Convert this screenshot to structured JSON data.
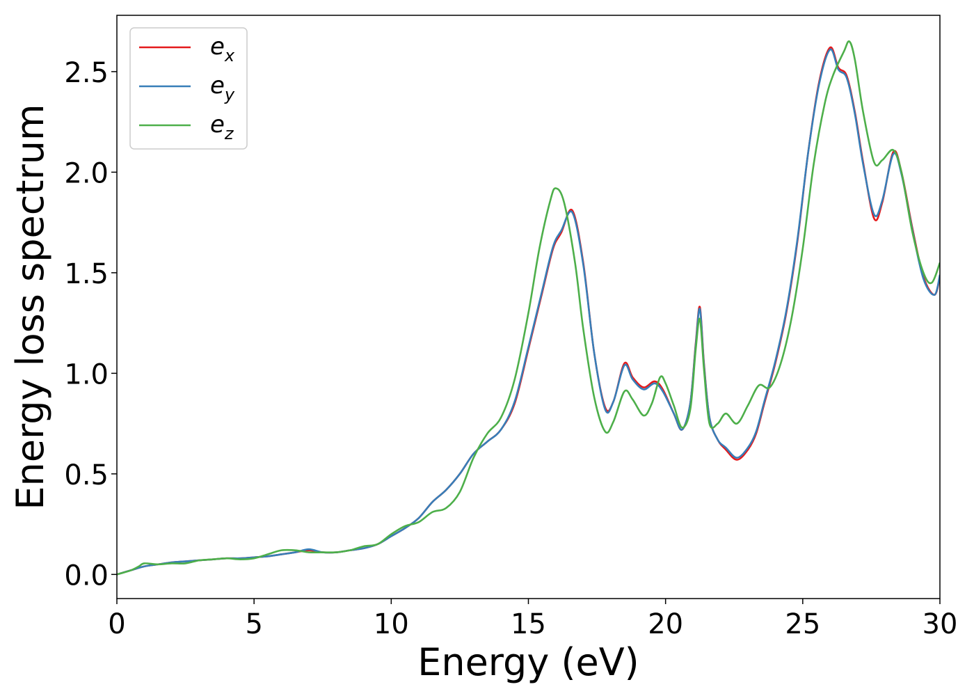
{
  "chart_data": {
    "type": "line",
    "title": "",
    "xlabel": "Energy (eV)",
    "ylabel": "Energy loss spectrum",
    "xlim": [
      0,
      30
    ],
    "ylim": [
      -0.12,
      2.78
    ],
    "xticks": [
      0,
      5,
      10,
      15,
      20,
      25,
      30
    ],
    "xtick_labels": [
      "0",
      "5",
      "10",
      "15",
      "20",
      "25",
      "30"
    ],
    "yticks": [
      0.0,
      0.5,
      1.0,
      1.5,
      2.0,
      2.5
    ],
    "ytick_labels": [
      "0.0",
      "0.5",
      "1.0",
      "1.5",
      "2.0",
      "2.5"
    ],
    "grid": false,
    "legend_position": "top-left",
    "series": [
      {
        "name": "e_x",
        "legend_base": "e",
        "legend_sub": "x",
        "color": "#e41a1c",
        "x": [
          0,
          0.5,
          1.0,
          1.5,
          2.0,
          2.5,
          3.0,
          3.5,
          4.0,
          4.5,
          5.0,
          5.5,
          6.0,
          6.5,
          7.0,
          7.5,
          8.0,
          8.5,
          9.0,
          9.5,
          10.0,
          10.5,
          11.0,
          11.5,
          12.0,
          12.5,
          13.0,
          13.5,
          14.0,
          14.5,
          15.0,
          15.5,
          15.9,
          16.2,
          16.6,
          17.0,
          17.4,
          17.8,
          18.1,
          18.5,
          18.8,
          19.2,
          19.6,
          19.9,
          20.3,
          20.6,
          20.9,
          21.1,
          21.25,
          21.4,
          21.6,
          21.9,
          22.2,
          22.6,
          23.0,
          23.3,
          23.6,
          24.0,
          24.4,
          24.8,
          25.2,
          25.6,
          26.0,
          26.3,
          26.6,
          26.9,
          27.2,
          27.6,
          27.9,
          28.3,
          28.6,
          29.0,
          29.4,
          29.8,
          30.0
        ],
        "y": [
          0.0,
          0.02,
          0.04,
          0.05,
          0.06,
          0.065,
          0.07,
          0.075,
          0.08,
          0.08,
          0.085,
          0.09,
          0.1,
          0.11,
          0.12,
          0.11,
          0.11,
          0.12,
          0.13,
          0.15,
          0.19,
          0.23,
          0.28,
          0.36,
          0.42,
          0.5,
          0.6,
          0.66,
          0.72,
          0.85,
          1.12,
          1.4,
          1.62,
          1.7,
          1.81,
          1.55,
          1.1,
          0.83,
          0.86,
          1.05,
          0.98,
          0.93,
          0.96,
          0.92,
          0.8,
          0.72,
          0.85,
          1.15,
          1.33,
          1.05,
          0.78,
          0.67,
          0.62,
          0.57,
          0.62,
          0.7,
          0.85,
          1.05,
          1.3,
          1.65,
          2.1,
          2.45,
          2.62,
          2.52,
          2.48,
          2.3,
          2.05,
          1.77,
          1.85,
          2.1,
          2.0,
          1.72,
          1.48,
          1.39,
          1.48
        ]
      },
      {
        "name": "e_y",
        "legend_base": "e",
        "legend_sub": "y",
        "color": "#377eb8",
        "x": [
          0,
          0.5,
          1.0,
          1.5,
          2.0,
          2.5,
          3.0,
          3.5,
          4.0,
          4.5,
          5.0,
          5.5,
          6.0,
          6.5,
          7.0,
          7.5,
          8.0,
          8.5,
          9.0,
          9.5,
          10.0,
          10.5,
          11.0,
          11.5,
          12.0,
          12.5,
          13.0,
          13.5,
          14.0,
          14.5,
          15.0,
          15.5,
          15.9,
          16.2,
          16.6,
          17.0,
          17.4,
          17.8,
          18.1,
          18.5,
          18.8,
          19.2,
          19.6,
          19.9,
          20.3,
          20.6,
          20.9,
          21.1,
          21.25,
          21.4,
          21.6,
          21.9,
          22.2,
          22.6,
          23.0,
          23.3,
          23.6,
          24.0,
          24.4,
          24.8,
          25.2,
          25.6,
          26.0,
          26.3,
          26.6,
          26.9,
          27.2,
          27.6,
          27.9,
          28.3,
          28.6,
          29.0,
          29.4,
          29.8,
          30.0
        ],
        "y": [
          0.0,
          0.02,
          0.04,
          0.05,
          0.06,
          0.065,
          0.07,
          0.075,
          0.08,
          0.08,
          0.085,
          0.09,
          0.1,
          0.11,
          0.125,
          0.11,
          0.11,
          0.12,
          0.13,
          0.15,
          0.19,
          0.23,
          0.28,
          0.36,
          0.42,
          0.5,
          0.6,
          0.66,
          0.72,
          0.86,
          1.13,
          1.41,
          1.63,
          1.71,
          1.8,
          1.54,
          1.1,
          0.82,
          0.86,
          1.04,
          0.97,
          0.92,
          0.95,
          0.91,
          0.8,
          0.72,
          0.85,
          1.14,
          1.32,
          1.04,
          0.78,
          0.67,
          0.63,
          0.58,
          0.63,
          0.71,
          0.86,
          1.06,
          1.31,
          1.66,
          2.1,
          2.44,
          2.61,
          2.51,
          2.47,
          2.29,
          2.04,
          1.79,
          1.86,
          2.09,
          1.99,
          1.71,
          1.47,
          1.39,
          1.49
        ]
      },
      {
        "name": "e_z",
        "legend_base": "e",
        "legend_sub": "z",
        "color": "#4daf4a",
        "x": [
          0,
          0.5,
          0.8,
          1.0,
          1.5,
          2.0,
          2.5,
          3.0,
          3.5,
          4.0,
          4.5,
          5.0,
          5.5,
          6.0,
          6.5,
          7.0,
          7.5,
          8.0,
          8.5,
          9.0,
          9.5,
          10.0,
          10.5,
          11.0,
          11.5,
          12.0,
          12.5,
          13.0,
          13.5,
          14.0,
          14.5,
          15.0,
          15.4,
          15.8,
          16.0,
          16.3,
          16.7,
          17.0,
          17.4,
          17.8,
          18.1,
          18.5,
          18.8,
          19.2,
          19.5,
          19.8,
          20.0,
          20.3,
          20.6,
          20.9,
          21.1,
          21.25,
          21.4,
          21.6,
          21.9,
          22.2,
          22.6,
          23.0,
          23.4,
          23.8,
          24.2,
          24.6,
          25.0,
          25.4,
          25.8,
          26.1,
          26.5,
          26.7,
          26.9,
          27.2,
          27.6,
          27.9,
          28.3,
          28.6,
          29.0,
          29.4,
          29.7,
          30.0
        ],
        "y": [
          0.0,
          0.02,
          0.04,
          0.055,
          0.05,
          0.055,
          0.055,
          0.07,
          0.075,
          0.08,
          0.075,
          0.08,
          0.1,
          0.12,
          0.12,
          0.11,
          0.11,
          0.11,
          0.12,
          0.14,
          0.15,
          0.2,
          0.24,
          0.26,
          0.31,
          0.33,
          0.41,
          0.58,
          0.7,
          0.78,
          0.97,
          1.3,
          1.62,
          1.86,
          1.92,
          1.85,
          1.55,
          1.22,
          0.88,
          0.71,
          0.76,
          0.91,
          0.87,
          0.79,
          0.85,
          0.98,
          0.95,
          0.84,
          0.73,
          0.82,
          1.12,
          1.27,
          1.02,
          0.75,
          0.75,
          0.8,
          0.75,
          0.84,
          0.94,
          0.93,
          1.05,
          1.28,
          1.62,
          2.04,
          2.34,
          2.48,
          2.6,
          2.65,
          2.56,
          2.3,
          2.05,
          2.06,
          2.11,
          2.0,
          1.7,
          1.5,
          1.45,
          1.55
        ]
      }
    ]
  }
}
